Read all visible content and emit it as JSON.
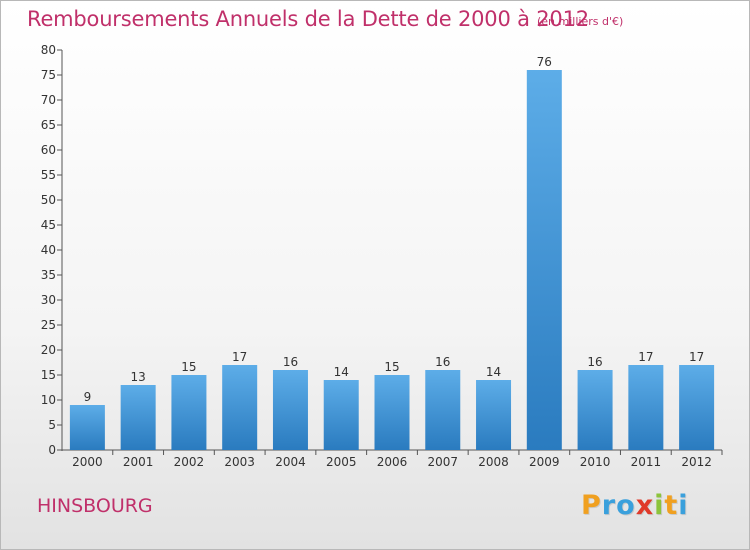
{
  "chart_data": {
    "type": "bar",
    "title": "Remboursements Annuels de la Dette de 2000 à 2012",
    "subtitle": "(en milliers d'€)",
    "categories": [
      "2000",
      "2001",
      "2002",
      "2003",
      "2004",
      "2005",
      "2006",
      "2007",
      "2008",
      "2009",
      "2010",
      "2011",
      "2012"
    ],
    "values": [
      9,
      13,
      15,
      17,
      16,
      14,
      15,
      16,
      14,
      76,
      16,
      17,
      17
    ],
    "ylim": [
      0,
      80
    ],
    "ytick_step": 5,
    "grid": false,
    "legend": "none",
    "colors": {
      "bar_top": "#5dade8",
      "bar_bottom": "#2a7bbf",
      "title": "#c0306a"
    }
  },
  "footer": {
    "commune": "HINSBOURG",
    "logo": [
      {
        "char": "P",
        "color": "#f0a020"
      },
      {
        "char": "r",
        "color": "#3aa0dc"
      },
      {
        "char": "o",
        "color": "#3aa0dc"
      },
      {
        "char": "x",
        "color": "#e03a2a"
      },
      {
        "char": "i",
        "color": "#8cc43c"
      },
      {
        "char": "t",
        "color": "#f0a020"
      },
      {
        "char": "i",
        "color": "#3aa0dc"
      }
    ]
  }
}
